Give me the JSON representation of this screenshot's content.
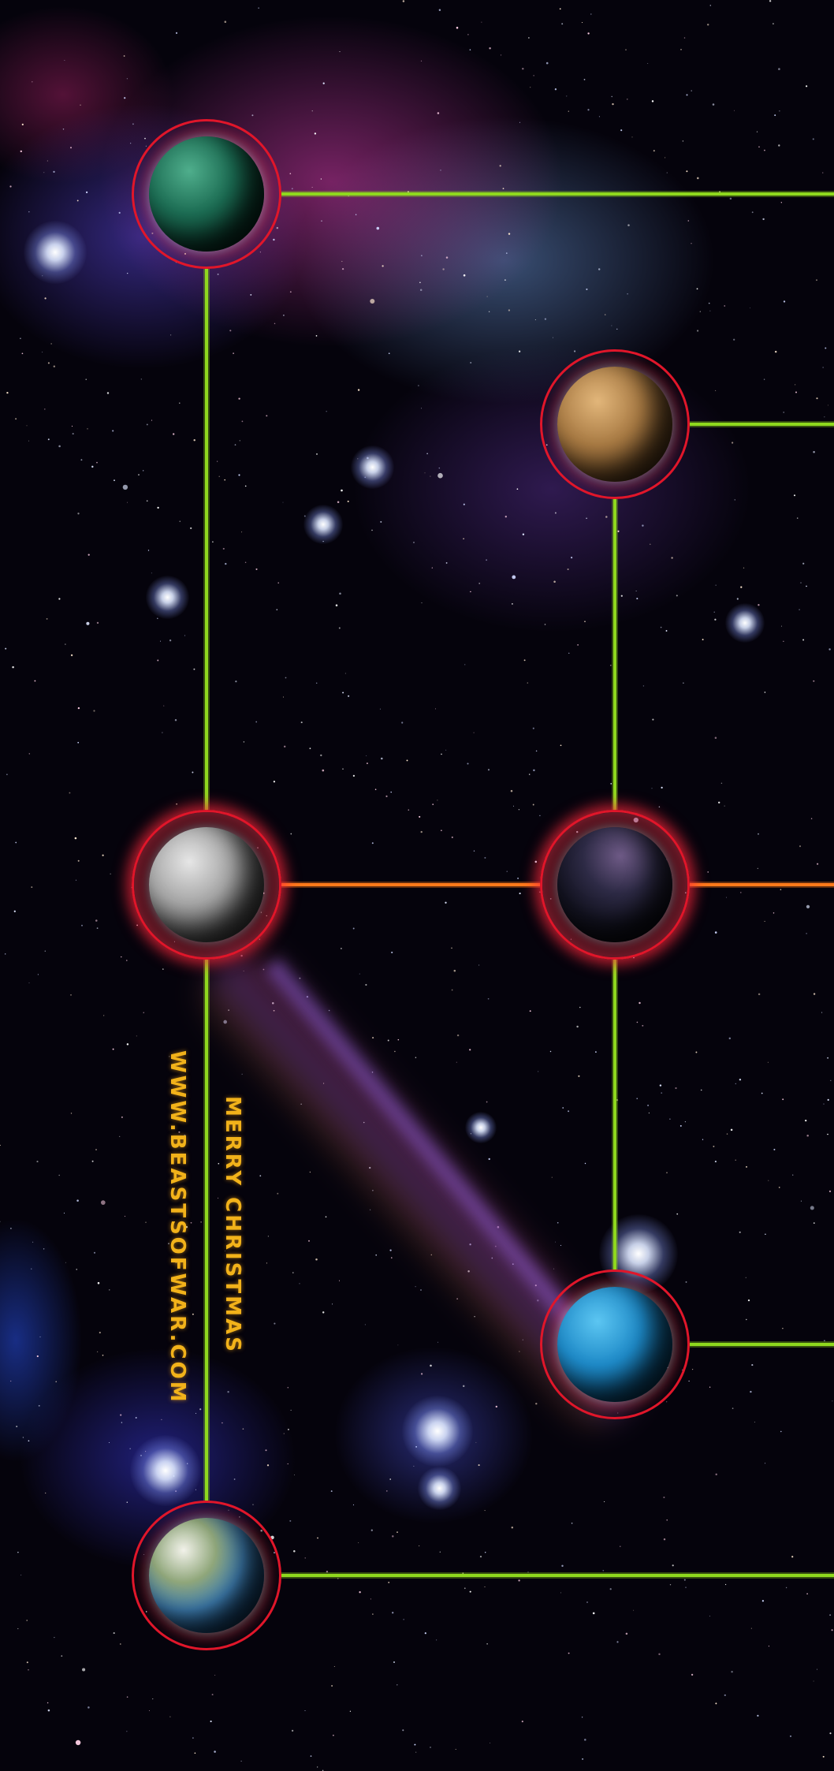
{
  "text": {
    "greeting": "MERRY CHRISTMAS",
    "website": "WWW.BEASTSOFWAR.COM"
  },
  "colors": {
    "link_green": "#8fd81e",
    "link_orange": "#ff7a1a",
    "node_ring": "#e0162a",
    "text_gold": "#f2b21a"
  },
  "planets": [
    {
      "id": "green",
      "surface": "green-jungle",
      "ring_glow": false
    },
    {
      "id": "desert",
      "surface": "tan-desert",
      "ring_glow": false
    },
    {
      "id": "grey",
      "surface": "grey-cratered",
      "ring_glow": true
    },
    {
      "id": "dark",
      "surface": "dark-shadowed",
      "ring_glow": true
    },
    {
      "id": "blue",
      "surface": "blue-ocean",
      "ring_glow": false
    },
    {
      "id": "earth",
      "surface": "earthlike",
      "ring_glow": false
    }
  ],
  "links": [
    {
      "from": "green",
      "to": "grey",
      "type": "green"
    },
    {
      "from": "grey",
      "to": "earth",
      "type": "green"
    },
    {
      "from": "desert",
      "to": "dark",
      "type": "green"
    },
    {
      "from": "dark",
      "to": "blue",
      "type": "green"
    },
    {
      "from": "grey",
      "to": "dark",
      "type": "orange"
    },
    {
      "from": "green",
      "to": "edge",
      "type": "green"
    },
    {
      "from": "desert",
      "to": "edge",
      "type": "green"
    },
    {
      "from": "dark",
      "to": "edge",
      "type": "orange"
    },
    {
      "from": "blue",
      "to": "edge",
      "type": "green"
    },
    {
      "from": "earth",
      "to": "edge",
      "type": "green"
    }
  ]
}
